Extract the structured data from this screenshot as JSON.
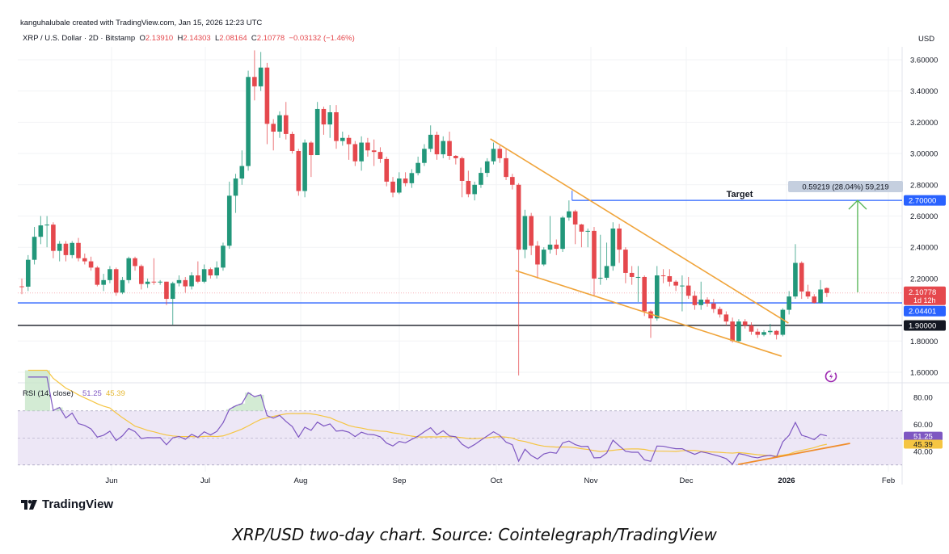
{
  "header": {
    "credit": "kanguhalubale created with TradingView.com, Jan 15, 2026 12:23 UTC",
    "symbol": "XRP / U.S. Dollar · 2D · Bitstamp",
    "o_label": "O",
    "o": "2.13910",
    "h_label": "H",
    "h": "2.14303",
    "l_label": "L",
    "l": "2.08164",
    "c_label": "C",
    "c": "2.10778",
    "change": "−0.03132 (−1.46%)",
    "currency": "USD"
  },
  "footer": {
    "logo_text": "TradingView",
    "caption": "XRP/USD two-day chart. Source: Cointelegraph/TradingView"
  },
  "colors": {
    "up": "#22977a",
    "down": "#e5484d",
    "level_blue": "#2962ff",
    "level_dark": "#131722",
    "wedge": "#f0a43a",
    "arrow": "#5cb85c",
    "rsi": "#7e57c2",
    "rsi_ma": "#f5c542",
    "rsi_band": "#ede7f6"
  },
  "chart_data": {
    "type": "candlestick",
    "interval": "2D",
    "ylim": [
      1.5,
      3.7
    ],
    "y_ticks": [
      {
        "value": 3.6,
        "label": "3.60000"
      },
      {
        "value": 3.4,
        "label": "3.40000"
      },
      {
        "value": 3.2,
        "label": "3.20000"
      },
      {
        "value": 3.0,
        "label": "3.00000"
      },
      {
        "value": 2.8,
        "label": "2.80000"
      },
      {
        "value": 2.6,
        "label": "2.60000"
      },
      {
        "value": 2.4,
        "label": "2.40000"
      },
      {
        "value": 2.2,
        "label": "2.20000"
      },
      {
        "value": 1.8,
        "label": "1.80000"
      },
      {
        "value": 1.6,
        "label": "1.60000"
      }
    ],
    "x_ticks": [
      "Jun",
      "Jul",
      "Aug",
      "Sep",
      "Oct",
      "Nov",
      "Dec",
      "2026",
      "Feb"
    ],
    "candles_ohlc": [
      [
        2.15,
        2.2,
        2.1,
        2.148
      ],
      [
        2.148,
        2.35,
        2.12,
        2.32
      ],
      [
        2.32,
        2.53,
        2.29,
        2.467
      ],
      [
        2.467,
        2.6,
        2.42,
        2.54
      ],
      [
        2.54,
        2.6,
        2.4,
        2.545
      ],
      [
        2.545,
        2.56,
        2.33,
        2.377
      ],
      [
        2.377,
        2.44,
        2.31,
        2.423
      ],
      [
        2.423,
        2.44,
        2.31,
        2.35
      ],
      [
        2.35,
        2.44,
        2.33,
        2.428
      ],
      [
        2.428,
        2.46,
        2.31,
        2.33
      ],
      [
        2.33,
        2.36,
        2.29,
        2.31
      ],
      [
        2.31,
        2.34,
        2.25,
        2.27
      ],
      [
        2.27,
        2.28,
        2.15,
        2.16
      ],
      [
        2.16,
        2.23,
        2.12,
        2.19
      ],
      [
        2.19,
        2.28,
        2.17,
        2.26
      ],
      [
        2.26,
        2.27,
        2.09,
        2.11
      ],
      [
        2.11,
        2.21,
        2.1,
        2.19
      ],
      [
        2.19,
        2.34,
        2.17,
        2.33
      ],
      [
        2.33,
        2.34,
        2.25,
        2.28
      ],
      [
        2.28,
        2.29,
        2.13,
        2.165
      ],
      [
        2.165,
        2.2,
        2.14,
        2.18
      ],
      [
        2.18,
        2.33,
        2.16,
        2.177
      ],
      [
        2.177,
        2.19,
        2.16,
        2.18
      ],
      [
        2.18,
        2.18,
        2.03,
        2.07
      ],
      [
        2.07,
        2.18,
        1.905,
        2.17
      ],
      [
        2.17,
        2.22,
        2.15,
        2.19
      ],
      [
        2.19,
        2.21,
        2.11,
        2.15
      ],
      [
        2.15,
        2.24,
        2.13,
        2.22
      ],
      [
        2.22,
        2.31,
        2.17,
        2.18
      ],
      [
        2.18,
        2.29,
        2.17,
        2.26
      ],
      [
        2.26,
        2.27,
        2.2,
        2.22
      ],
      [
        2.22,
        2.31,
        2.2,
        2.27
      ],
      [
        2.27,
        2.43,
        2.25,
        2.41
      ],
      [
        2.41,
        2.82,
        2.39,
        2.73
      ],
      [
        2.73,
        2.87,
        2.62,
        2.84
      ],
      [
        2.84,
        3.02,
        2.8,
        2.92
      ],
      [
        2.92,
        3.53,
        2.89,
        3.49
      ],
      [
        3.49,
        3.66,
        3.34,
        3.43
      ],
      [
        3.43,
        3.65,
        3.4,
        3.55
      ],
      [
        3.55,
        3.58,
        3.06,
        3.19
      ],
      [
        3.19,
        3.22,
        3.02,
        3.14
      ],
      [
        3.14,
        3.27,
        3.1,
        3.245
      ],
      [
        3.245,
        3.33,
        3.09,
        3.125
      ],
      [
        3.125,
        3.14,
        3.0,
        3.016
      ],
      [
        3.016,
        3.03,
        2.73,
        2.76
      ],
      [
        2.76,
        3.09,
        2.72,
        3.07
      ],
      [
        3.07,
        3.08,
        2.85,
        2.99
      ],
      [
        2.99,
        3.33,
        2.99,
        3.285
      ],
      [
        3.285,
        3.3,
        3.12,
        3.186
      ],
      [
        3.186,
        3.31,
        3.1,
        3.264
      ],
      [
        3.264,
        3.31,
        3.03,
        3.08
      ],
      [
        3.08,
        3.14,
        3.05,
        3.1
      ],
      [
        3.1,
        3.12,
        2.96,
        3.06
      ],
      [
        3.06,
        3.08,
        2.92,
        2.95
      ],
      [
        2.95,
        3.11,
        2.89,
        3.07
      ],
      [
        3.07,
        3.1,
        2.98,
        3.02
      ],
      [
        3.02,
        3.09,
        2.92,
        3.01
      ],
      [
        3.01,
        3.04,
        2.94,
        2.965
      ],
      [
        2.965,
        2.98,
        2.79,
        2.82
      ],
      [
        2.82,
        2.85,
        2.72,
        2.75
      ],
      [
        2.75,
        2.88,
        2.74,
        2.84
      ],
      [
        2.84,
        2.88,
        2.79,
        2.81
      ],
      [
        2.81,
        2.9,
        2.78,
        2.875
      ],
      [
        2.875,
        2.98,
        2.86,
        2.94
      ],
      [
        2.94,
        3.06,
        2.92,
        3.03
      ],
      [
        3.03,
        3.18,
        3.01,
        3.12
      ],
      [
        3.12,
        3.14,
        2.96,
        2.995
      ],
      [
        2.995,
        3.11,
        2.97,
        3.08
      ],
      [
        3.08,
        3.14,
        2.96,
        2.985
      ],
      [
        2.985,
        2.99,
        2.93,
        2.97
      ],
      [
        2.97,
        2.98,
        2.72,
        2.825
      ],
      [
        2.825,
        2.89,
        2.72,
        2.74
      ],
      [
        2.74,
        2.82,
        2.7,
        2.8
      ],
      [
        2.8,
        2.91,
        2.78,
        2.876
      ],
      [
        2.876,
        2.97,
        2.85,
        2.95
      ],
      [
        2.95,
        3.07,
        2.93,
        3.03
      ],
      [
        3.03,
        3.05,
        2.94,
        2.97
      ],
      [
        2.97,
        3.03,
        2.83,
        2.85
      ],
      [
        2.85,
        2.87,
        2.77,
        2.8
      ],
      [
        2.8,
        2.81,
        1.58,
        2.385
      ],
      [
        2.385,
        2.64,
        2.33,
        2.6
      ],
      [
        2.6,
        2.62,
        2.35,
        2.41
      ],
      [
        2.41,
        2.44,
        2.2,
        2.29
      ],
      [
        2.29,
        2.4,
        2.28,
        2.385
      ],
      [
        2.385,
        2.6,
        2.36,
        2.417
      ],
      [
        2.417,
        2.45,
        2.35,
        2.39
      ],
      [
        2.39,
        2.6,
        2.37,
        2.59
      ],
      [
        2.59,
        2.7,
        2.57,
        2.63
      ],
      [
        2.63,
        2.64,
        2.42,
        2.546
      ],
      [
        2.546,
        2.55,
        2.4,
        2.5
      ],
      [
        2.5,
        2.52,
        2.4,
        2.505
      ],
      [
        2.505,
        2.53,
        2.09,
        2.2
      ],
      [
        2.2,
        2.48,
        2.16,
        2.205
      ],
      [
        2.205,
        2.43,
        2.19,
        2.28
      ],
      [
        2.28,
        2.56,
        2.25,
        2.52
      ],
      [
        2.52,
        2.55,
        2.3,
        2.385
      ],
      [
        2.385,
        2.4,
        2.17,
        2.236
      ],
      [
        2.236,
        2.28,
        2.16,
        2.21
      ],
      [
        2.21,
        2.28,
        2.05,
        2.21
      ],
      [
        2.21,
        2.22,
        1.96,
        1.99
      ],
      [
        1.99,
        2.0,
        1.82,
        1.945
      ],
      [
        1.945,
        2.28,
        1.93,
        2.22
      ],
      [
        2.22,
        2.26,
        2.17,
        2.215
      ],
      [
        2.215,
        2.26,
        2.15,
        2.18
      ],
      [
        2.18,
        2.19,
        2.12,
        2.155
      ],
      [
        2.155,
        2.22,
        1.99,
        2.155
      ],
      [
        2.155,
        2.21,
        2.07,
        2.09
      ],
      [
        2.09,
        2.12,
        2.0,
        2.03
      ],
      [
        2.03,
        2.18,
        2.0,
        2.065
      ],
      [
        2.065,
        2.08,
        2.02,
        2.04
      ],
      [
        2.04,
        2.07,
        1.98,
        2.005
      ],
      [
        2.005,
        2.02,
        1.95,
        1.97
      ],
      [
        1.97,
        1.99,
        1.9,
        1.925
      ],
      [
        1.925,
        1.95,
        1.79,
        1.8
      ],
      [
        1.8,
        1.94,
        1.79,
        1.925
      ],
      [
        1.925,
        1.94,
        1.88,
        1.9
      ],
      [
        1.9,
        1.92,
        1.84,
        1.86
      ],
      [
        1.86,
        1.88,
        1.82,
        1.84
      ],
      [
        1.84,
        1.87,
        1.83,
        1.857
      ],
      [
        1.857,
        1.91,
        1.84,
        1.865
      ],
      [
        1.865,
        1.87,
        1.81,
        1.84
      ],
      [
        1.84,
        2.01,
        1.83,
        2.0
      ],
      [
        2.0,
        2.12,
        1.97,
        2.085
      ],
      [
        2.085,
        2.42,
        2.07,
        2.3
      ],
      [
        2.3,
        2.31,
        2.07,
        2.117
      ],
      [
        2.117,
        2.16,
        2.07,
        2.085
      ],
      [
        2.085,
        2.1,
        2.04,
        2.045
      ],
      [
        2.045,
        2.19,
        2.04,
        2.13
      ],
      [
        2.1391,
        2.14303,
        2.08164,
        2.10778
      ]
    ],
    "levels": [
      {
        "price": 2.7,
        "label": "2.70000",
        "color": "#2962ff",
        "from_candle": 87.5,
        "name": "Target"
      },
      {
        "price": 2.04401,
        "label": "2.04401",
        "color": "#2962ff"
      },
      {
        "price": 1.9,
        "label": "1.90000",
        "color": "#131722"
      }
    ],
    "last_price": {
      "price": 2.10778,
      "label": "2.10778",
      "countdown": "1d 12h"
    },
    "wedge_lines": [
      {
        "from": [
          74.5,
          3.094
        ],
        "to": [
          121.9,
          1.915
        ]
      },
      {
        "from": [
          78.5,
          2.251
        ],
        "to": [
          120.8,
          1.703
        ]
      }
    ],
    "target_arrow": {
      "candle": 132.9,
      "from_price": 2.112,
      "to_price": 2.7
    },
    "measure_label": "0.59219 (28.04%) 59,219",
    "rsi": {
      "title": "RSI (14, close)",
      "value": "51.25",
      "ma_value": "45.39",
      "period": 14,
      "ticks": [
        {
          "value": 80,
          "label": "80.00"
        },
        {
          "value": 60,
          "label": "60.00"
        },
        {
          "value": 40,
          "label": "40.00"
        }
      ],
      "band": [
        30,
        70
      ],
      "trendline": {
        "from": [
          113.9,
          30.4
        ],
        "to": [
          131.7,
          46.0
        ]
      }
    }
  }
}
